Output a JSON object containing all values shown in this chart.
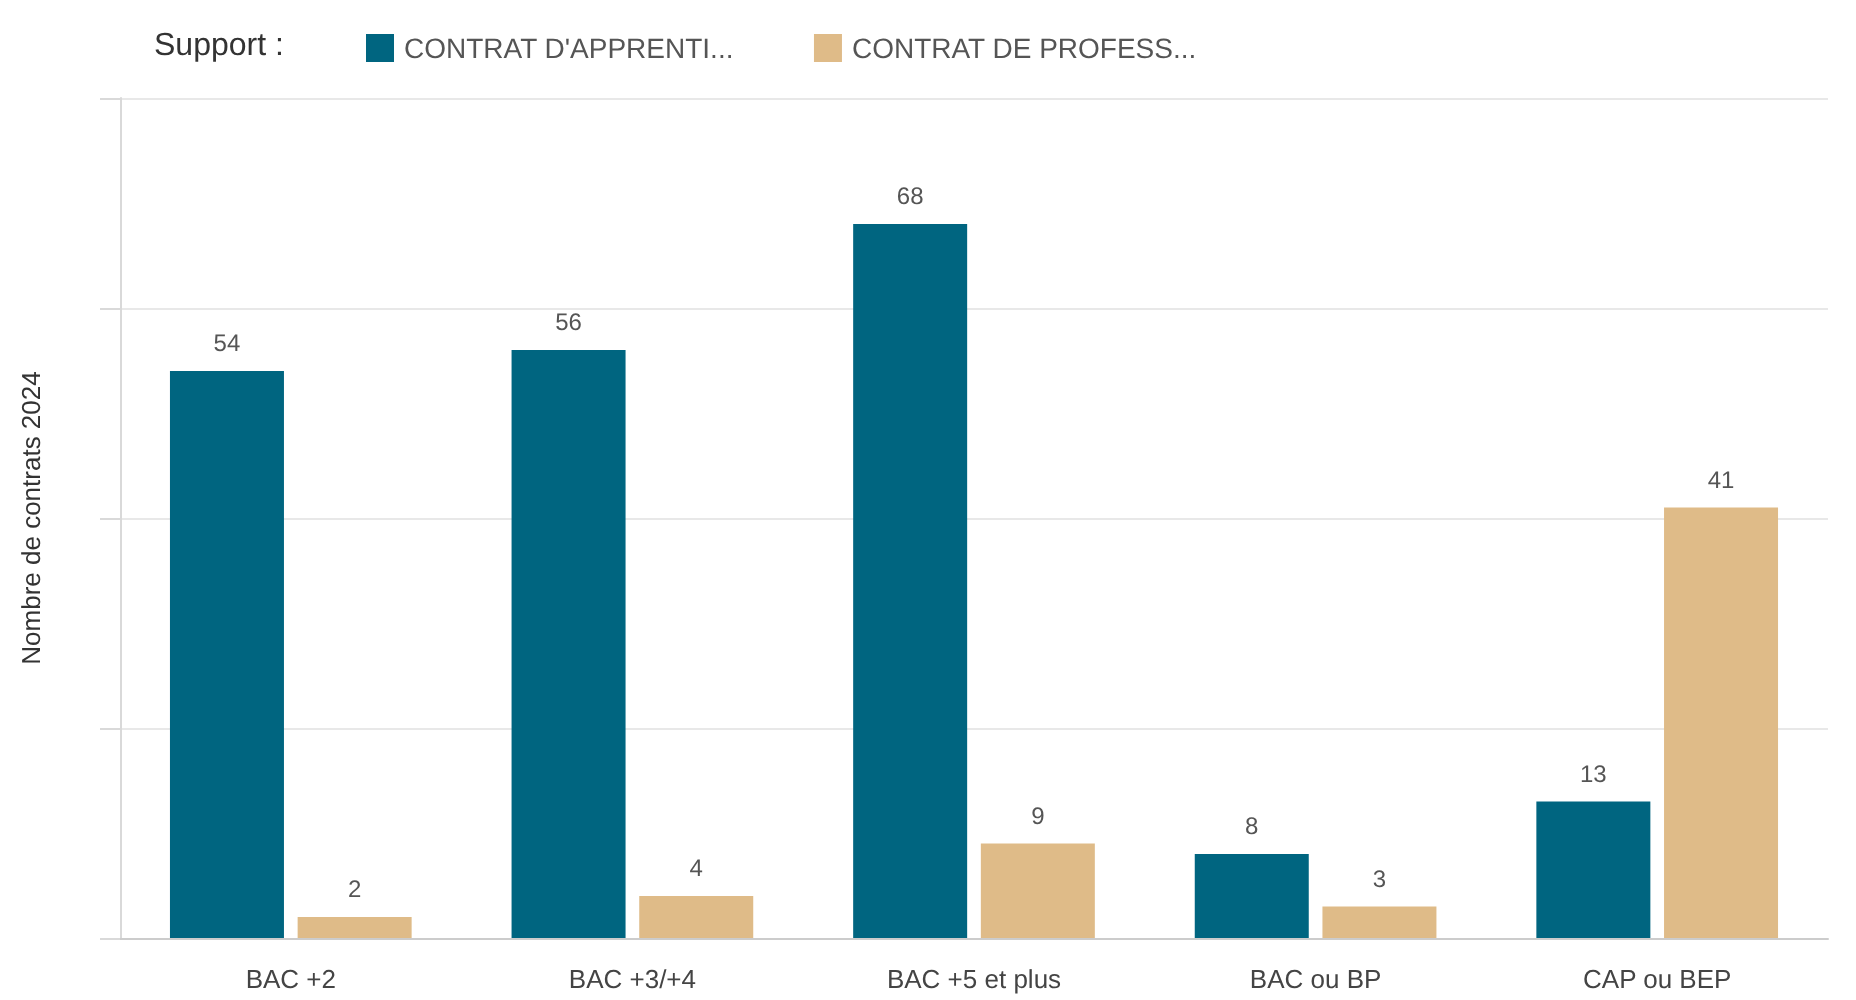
{
  "chart_data": {
    "type": "bar",
    "legend_title": "Support :",
    "ylabel": "Nombre de contrats 2024",
    "categories": [
      "BAC +2",
      "BAC +3/+4",
      "BAC +5 et plus",
      "BAC ou BP",
      "CAP ou BEP"
    ],
    "series": [
      {
        "name": "CONTRAT D'APPRENTI...",
        "color": "#006580",
        "values": [
          54,
          56,
          68,
          8,
          13
        ]
      },
      {
        "name": "CONTRAT DE PROFESS...",
        "color": "#dfbb88",
        "values": [
          2,
          4,
          9,
          3,
          41
        ]
      }
    ],
    "ylim": [
      0,
      80
    ],
    "yticks": [
      {
        "value": 0,
        "label": null
      },
      {
        "value": 20,
        "label": null
      },
      {
        "value": 40,
        "label": null
      },
      {
        "value": 60,
        "label": null
      },
      {
        "value": 80,
        "label": null
      }
    ],
    "grid": "y",
    "legend": "top left",
    "tick_labels": "x",
    "data_labels": true
  }
}
